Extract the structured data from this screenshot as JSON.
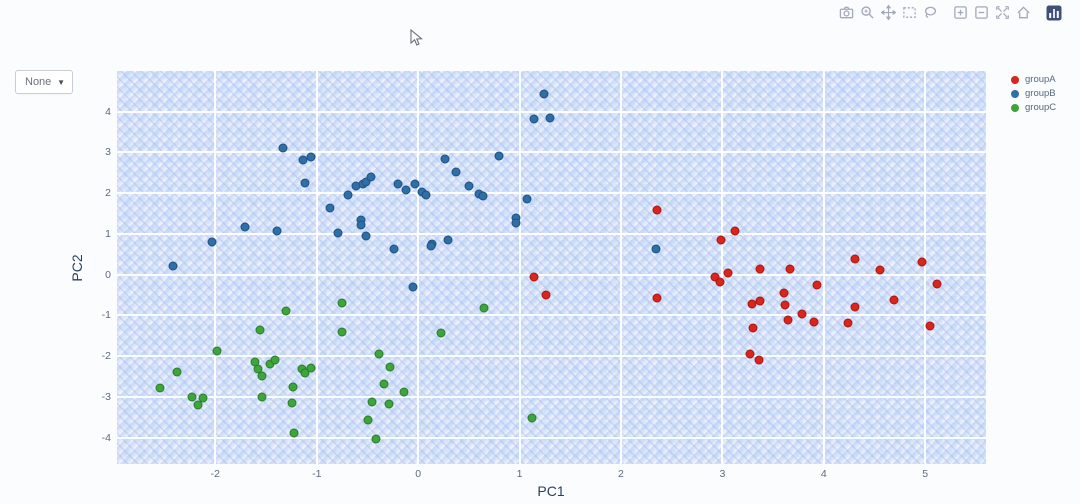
{
  "controls": {
    "group_dropdown": {
      "value": "None",
      "arrow": "▼"
    }
  },
  "modebar": {
    "buttons": [
      {
        "name": "camera"
      },
      {
        "name": "zoom"
      },
      {
        "name": "pan"
      },
      {
        "name": "box-select"
      },
      {
        "name": "lasso-select"
      },
      {
        "name": "zoom-in"
      },
      {
        "name": "zoom-out"
      },
      {
        "name": "autoscale"
      },
      {
        "name": "reset-axes"
      },
      {
        "name": "plotly-logo"
      }
    ],
    "logo_color": "#3f4f75",
    "icon_color": "#a2a9b8"
  },
  "chart_data": {
    "type": "scatter",
    "title": "",
    "xlabel": "PC1",
    "ylabel": "PC2",
    "x_ticks": [
      -2,
      -1,
      0,
      1,
      2,
      3,
      4,
      5
    ],
    "y_ticks": [
      4,
      3,
      2,
      1,
      0,
      -1,
      -2,
      -3,
      -4
    ],
    "xlim": [
      -2.97,
      5.6
    ],
    "ylim": [
      -4.65,
      5.0
    ],
    "grid": true,
    "legend_position": "right",
    "plot_bg": "#d9edfb",
    "series": [
      {
        "name": "groupA",
        "color": "#d8251d",
        "line_color": "#a8170f",
        "points": [
          [
            2.36,
            1.58
          ],
          [
            3.12,
            1.08
          ],
          [
            2.99,
            0.84
          ],
          [
            4.31,
            0.39
          ],
          [
            4.97,
            0.3
          ],
          [
            3.37,
            0.15
          ],
          [
            3.67,
            0.15
          ],
          [
            4.55,
            0.12
          ],
          [
            3.06,
            0.05
          ],
          [
            2.93,
            -0.07
          ],
          [
            2.98,
            -0.17
          ],
          [
            3.93,
            -0.25
          ],
          [
            5.12,
            -0.22
          ],
          [
            2.36,
            -0.57
          ],
          [
            3.61,
            -0.44
          ],
          [
            3.29,
            -0.71
          ],
          [
            3.37,
            -0.64
          ],
          [
            3.62,
            -0.74
          ],
          [
            4.69,
            -0.62
          ],
          [
            4.31,
            -0.79
          ],
          [
            3.79,
            -0.96
          ],
          [
            3.65,
            -1.11
          ],
          [
            3.9,
            -1.16
          ],
          [
            4.24,
            -1.18
          ],
          [
            5.05,
            -1.26
          ],
          [
            3.3,
            -1.31
          ],
          [
            3.27,
            -1.95
          ],
          [
            3.36,
            -2.09
          ],
          [
            1.14,
            -0.05
          ],
          [
            1.26,
            -0.49
          ]
        ]
      },
      {
        "name": "groupB",
        "color": "#2f6fa8",
        "line_color": "#1d5181",
        "points": [
          [
            -1.33,
            3.1
          ],
          [
            -1.14,
            2.81
          ],
          [
            -1.06,
            2.88
          ],
          [
            -1.12,
            2.24
          ],
          [
            -0.69,
            1.95
          ],
          [
            -0.87,
            1.63
          ],
          [
            -0.61,
            2.17
          ],
          [
            -0.54,
            2.22
          ],
          [
            -0.51,
            2.27
          ],
          [
            -0.47,
            2.39
          ],
          [
            -0.2,
            2.22
          ],
          [
            -0.12,
            2.07
          ],
          [
            -0.03,
            2.22
          ],
          [
            0.04,
            2.02
          ],
          [
            0.08,
            1.95
          ],
          [
            -0.56,
            1.35
          ],
          [
            -0.56,
            1.23
          ],
          [
            -0.79,
            1.03
          ],
          [
            -0.51,
            0.94
          ],
          [
            0.14,
            0.76
          ],
          [
            -0.24,
            0.62
          ],
          [
            -1.71,
            1.16
          ],
          [
            -1.39,
            1.06
          ],
          [
            -2.03,
            0.79
          ],
          [
            -2.42,
            0.2
          ],
          [
            1.24,
            4.43
          ],
          [
            1.14,
            3.82
          ],
          [
            1.3,
            3.84
          ],
          [
            0.26,
            2.83
          ],
          [
            0.8,
            2.91
          ],
          [
            0.37,
            2.51
          ],
          [
            0.5,
            2.17
          ],
          [
            0.6,
            1.97
          ],
          [
            0.64,
            1.92
          ],
          [
            1.07,
            1.85
          ],
          [
            0.96,
            1.4
          ],
          [
            0.96,
            1.26
          ],
          [
            0.13,
            0.71
          ],
          [
            0.29,
            0.84
          ],
          [
            2.35,
            0.62
          ],
          [
            -0.05,
            -0.3
          ]
        ]
      },
      {
        "name": "groupC",
        "color": "#3ea43c",
        "line_color": "#2a7c29",
        "points": [
          [
            -0.75,
            -0.69
          ],
          [
            -1.3,
            -0.89
          ],
          [
            0.65,
            -0.81
          ],
          [
            0.23,
            -1.43
          ],
          [
            -0.75,
            -1.4
          ],
          [
            -1.56,
            -1.35
          ],
          [
            -1.98,
            -1.87
          ],
          [
            -0.39,
            -1.95
          ],
          [
            -0.28,
            -2.27
          ],
          [
            -1.61,
            -2.14
          ],
          [
            -1.58,
            -2.32
          ],
          [
            -1.46,
            -2.19
          ],
          [
            -1.41,
            -2.09
          ],
          [
            -1.54,
            -2.49
          ],
          [
            -2.38,
            -2.39
          ],
          [
            -1.15,
            -2.32
          ],
          [
            -1.12,
            -2.41
          ],
          [
            -1.06,
            -2.29
          ],
          [
            -2.55,
            -2.78
          ],
          [
            -2.23,
            -3.0
          ],
          [
            -2.12,
            -3.03
          ],
          [
            -2.17,
            -3.2
          ],
          [
            -1.23,
            -2.76
          ],
          [
            -1.54,
            -3.0
          ],
          [
            -0.34,
            -2.68
          ],
          [
            -0.14,
            -2.88
          ],
          [
            -1.24,
            -3.15
          ],
          [
            -0.46,
            -3.13
          ],
          [
            -0.29,
            -3.18
          ],
          [
            -0.49,
            -3.57
          ],
          [
            -1.22,
            -3.89
          ],
          [
            -0.42,
            -4.04
          ],
          [
            1.12,
            -3.52
          ]
        ]
      }
    ]
  }
}
